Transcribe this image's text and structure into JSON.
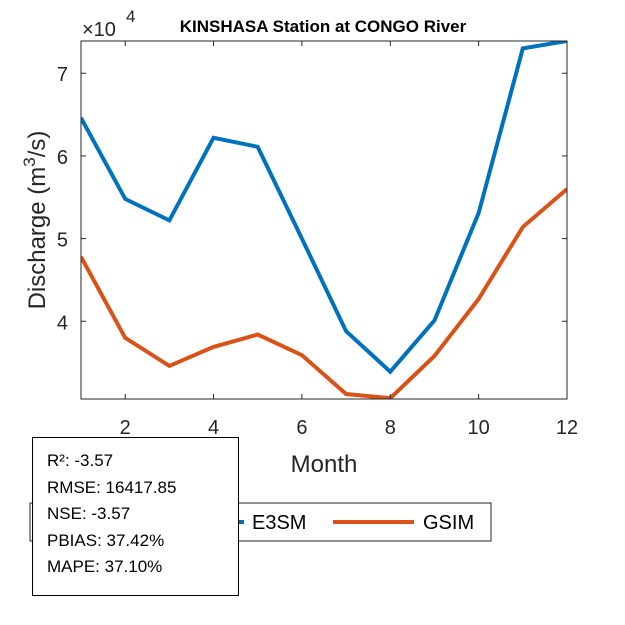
{
  "chart_data": {
    "type": "line",
    "title": "KINSHASA  Station at  CONGO  River",
    "xlabel": "Month",
    "ylabel": "Discharge (m³/s)",
    "ylabel_parts": {
      "prefix": "Discharge (m",
      "sup": "3",
      "suffix": "/s)"
    },
    "y_exponent_label": {
      "base": "×10",
      "exp": "4"
    },
    "x": [
      1,
      2,
      3,
      4,
      5,
      6,
      7,
      8,
      9,
      10,
      11,
      12
    ],
    "xlim": [
      1,
      12
    ],
    "ylim": [
      3.06,
      7.39
    ],
    "y_scale": 10000,
    "xticks": [
      2,
      4,
      6,
      8,
      10,
      12
    ],
    "yticks": [
      4,
      5,
      6,
      7
    ],
    "grid": false,
    "legend_position": "bottom-center",
    "series": [
      {
        "name": "E3SM",
        "color": "#0072BD",
        "values": [
          6.46,
          5.48,
          5.22,
          6.22,
          6.11,
          5.0,
          3.88,
          3.39,
          4.01,
          5.31,
          7.3,
          7.39
        ]
      },
      {
        "name": "GSIM",
        "color": "#D95319",
        "values": [
          4.78,
          3.8,
          3.46,
          3.69,
          3.84,
          3.59,
          3.12,
          3.07,
          3.58,
          4.27,
          5.14,
          5.6
        ]
      }
    ]
  },
  "stats": [
    "R²: -3.57",
    "RMSE: 16417.85",
    "NSE: -3.57",
    "PBIAS: 37.42%",
    "MAPE: 37.10%"
  ]
}
